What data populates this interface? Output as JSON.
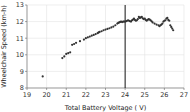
{
  "chart_data": {
    "type": "scatter",
    "xlabel": "Total Battery Voltage ( V)",
    "ylabel": "Wheelchair Speed (km-h)",
    "x": [
      19.8,
      20.8,
      20.9,
      21.0,
      21.1,
      21.2,
      21.3,
      21.4,
      21.5,
      21.7,
      21.9,
      22.0,
      22.1,
      22.2,
      22.3,
      22.4,
      22.5,
      22.6,
      22.65,
      22.7,
      22.8,
      22.9,
      23.0,
      23.1,
      23.2,
      23.3,
      23.4,
      23.5,
      23.6,
      23.65,
      23.7,
      23.75,
      23.8,
      23.85,
      23.9,
      23.95,
      24.0,
      24.05,
      24.1,
      24.15,
      24.2,
      24.25,
      24.3,
      24.35,
      24.4,
      24.45,
      24.5,
      24.55,
      24.6,
      24.65,
      24.7,
      24.75,
      24.8,
      24.85,
      24.9,
      24.95,
      25.0,
      25.05,
      25.1,
      25.15,
      25.2,
      25.25,
      25.3,
      25.35,
      25.4,
      25.5,
      25.6,
      25.7,
      25.75,
      25.8,
      25.85,
      25.9,
      25.95,
      26.0,
      26.05,
      26.1,
      26.15,
      26.2,
      26.25,
      26.3,
      26.35,
      26.4,
      26.45
    ],
    "values": [
      8.7,
      9.8,
      9.9,
      10.05,
      10.1,
      10.15,
      10.6,
      10.65,
      10.72,
      10.82,
      10.92,
      11.0,
      11.05,
      11.1,
      11.15,
      11.2,
      11.25,
      11.3,
      11.35,
      11.38,
      11.42,
      11.48,
      11.52,
      11.56,
      11.6,
      11.65,
      11.7,
      11.78,
      11.88,
      11.92,
      11.95,
      11.98,
      12.0,
      11.97,
      12.0,
      12.0,
      12.0,
      12.02,
      12.05,
      12.08,
      12.05,
      12.02,
      12.0,
      12.08,
      12.12,
      12.18,
      12.1,
      12.05,
      12.08,
      12.15,
      12.28,
      12.22,
      12.25,
      12.28,
      12.2,
      12.15,
      12.18,
      12.1,
      12.05,
      12.1,
      12.15,
      12.12,
      12.08,
      12.02,
      11.95,
      11.88,
      11.82,
      11.78,
      11.72,
      11.78,
      11.82,
      11.88,
      12.0,
      12.05,
      12.08,
      12.18,
      12.22,
      12.1,
      12.05,
      11.78,
      11.68,
      11.58,
      11.48
    ],
    "color": "#333333",
    "vlines": [
      {
        "x": 24.0,
        "color": "#000000"
      }
    ],
    "xlim": [
      19,
      27
    ],
    "ylim": [
      8,
      13
    ],
    "xticks": [
      19,
      20,
      21,
      22,
      23,
      24,
      25,
      26,
      27
    ],
    "yticks": [
      8,
      9,
      10,
      11,
      12,
      13
    ],
    "grid": true
  }
}
